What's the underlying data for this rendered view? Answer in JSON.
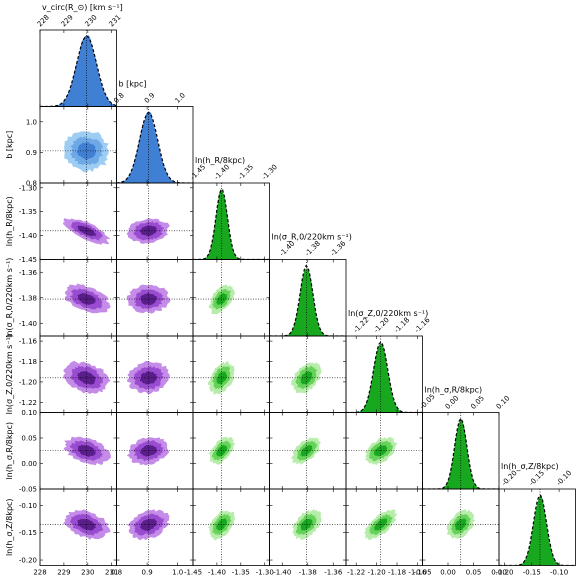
{
  "chart_data": {
    "type": "corner",
    "colors": {
      "blue": [
        "#9ecdf3",
        "#6fa8e6",
        "#3f7fd4"
      ],
      "purple": [
        "#c58be8",
        "#9a4cd0",
        "#5a1d8c"
      ],
      "green": [
        "#b7ecaa",
        "#66d25a",
        "#18a820"
      ],
      "blue_hist": "#3f7fd4",
      "purple_hist": "#7a33b5",
      "green_hist": "#18a820"
    },
    "parameters": [
      {
        "name": "v_circ",
        "bottom_label": "v_circ(R_⊙) [km s⁻¹]",
        "top_label": "v_circ(R_⊙) [km s⁻¹]",
        "left_label": "",
        "range": [
          228,
          231.2
        ],
        "ticks": [
          "228",
          "229",
          "230",
          "231"
        ],
        "tick_values": [
          228,
          229,
          230,
          231
        ],
        "mean": 229.95,
        "sd": 0.42
      },
      {
        "name": "b",
        "bottom_label": "b [kpc]",
        "top_label": "b [kpc]",
        "left_label": "b [kpc]",
        "range": [
          0.8,
          1.05
        ],
        "ticks": [
          "0.8",
          "0.9",
          "1.0"
        ],
        "tick_values": [
          0.8,
          0.9,
          1.0
        ],
        "mean": 0.905,
        "sd": 0.03
      },
      {
        "name": "ln_hR",
        "bottom_label": "ln(h_R/8kpc)",
        "top_label": "ln(h_R/8kpc)",
        "left_label": "ln(h_R/8kpc)",
        "range": [
          -1.45,
          -1.29
        ],
        "ticks": [
          "-1.45",
          "-1.40",
          "-1.35",
          "-1.30"
        ],
        "tick_values": [
          -1.45,
          -1.4,
          -1.35,
          -1.3
        ],
        "mean": -1.39,
        "sd": 0.012
      },
      {
        "name": "ln_sigmaR",
        "bottom_label": "ln(σ_R,0/220km s⁻¹)",
        "top_label": "ln(σ_R,0/220km s⁻¹)",
        "left_label": "ln(σ_R,0/220km s⁻¹)",
        "range": [
          -1.41,
          -1.35
        ],
        "ticks": [
          "-1.40",
          "-1.38",
          "-1.36"
        ],
        "tick_values": [
          -1.4,
          -1.38,
          -1.36
        ],
        "mean": -1.381,
        "sd": 0.005
      },
      {
        "name": "ln_sigmaZ",
        "bottom_label": "ln(σ_Z,0/220km s⁻¹)",
        "top_label": "ln(σ_Z,0/220km s⁻¹)",
        "left_label": "ln(σ_Z,0/220km s⁻¹)",
        "range": [
          -1.23,
          -1.155
        ],
        "ticks": [
          "-1.22",
          "-1.20",
          "-1.18",
          "-1.16"
        ],
        "tick_values": [
          -1.22,
          -1.2,
          -1.18,
          -1.16
        ],
        "mean": -1.196,
        "sd": 0.007
      },
      {
        "name": "ln_hsR",
        "bottom_label": "ln(h_σ,R/8kpc)",
        "top_label": "ln(h_σ,R/8kpc)",
        "left_label": "ln(h_σ,R/8kpc)",
        "range": [
          -0.05,
          0.1
        ],
        "ticks": [
          "-0.05",
          "0.00",
          "0.05",
          "0.10"
        ],
        "tick_values": [
          -0.05,
          0.0,
          0.05,
          0.1
        ],
        "mean": 0.025,
        "sd": 0.012
      },
      {
        "name": "ln_hsZ",
        "bottom_label": "ln(h_σ,Z/8kpc)",
        "top_label": "ln(h_σ,Z/8kpc)",
        "left_label": "ln(h_σ,Z/8kpc)",
        "range": [
          -0.21,
          -0.07
        ],
        "ticks": [
          "-0.20",
          "-0.15",
          "-0.10"
        ],
        "tick_values": [
          -0.2,
          -0.15,
          -0.1
        ],
        "mean": -0.135,
        "sd": 0.012
      }
    ],
    "correlations": [
      [
        1.0,
        -0.05,
        -0.7,
        -0.4,
        -0.3,
        -0.35,
        -0.35
      ],
      [
        -0.05,
        1.0,
        0.1,
        0.05,
        0.1,
        0.2,
        0.3
      ],
      [
        -0.7,
        0.1,
        1.0,
        0.5,
        0.4,
        0.5,
        0.45
      ],
      [
        -0.4,
        0.05,
        0.5,
        1.0,
        0.4,
        0.55,
        0.45
      ],
      [
        -0.3,
        0.1,
        0.4,
        0.4,
        1.0,
        0.45,
        0.65
      ],
      [
        -0.35,
        0.2,
        0.5,
        0.55,
        0.45,
        1.0,
        0.4
      ],
      [
        -0.35,
        0.3,
        0.45,
        0.45,
        0.65,
        0.4,
        1.0
      ]
    ]
  }
}
